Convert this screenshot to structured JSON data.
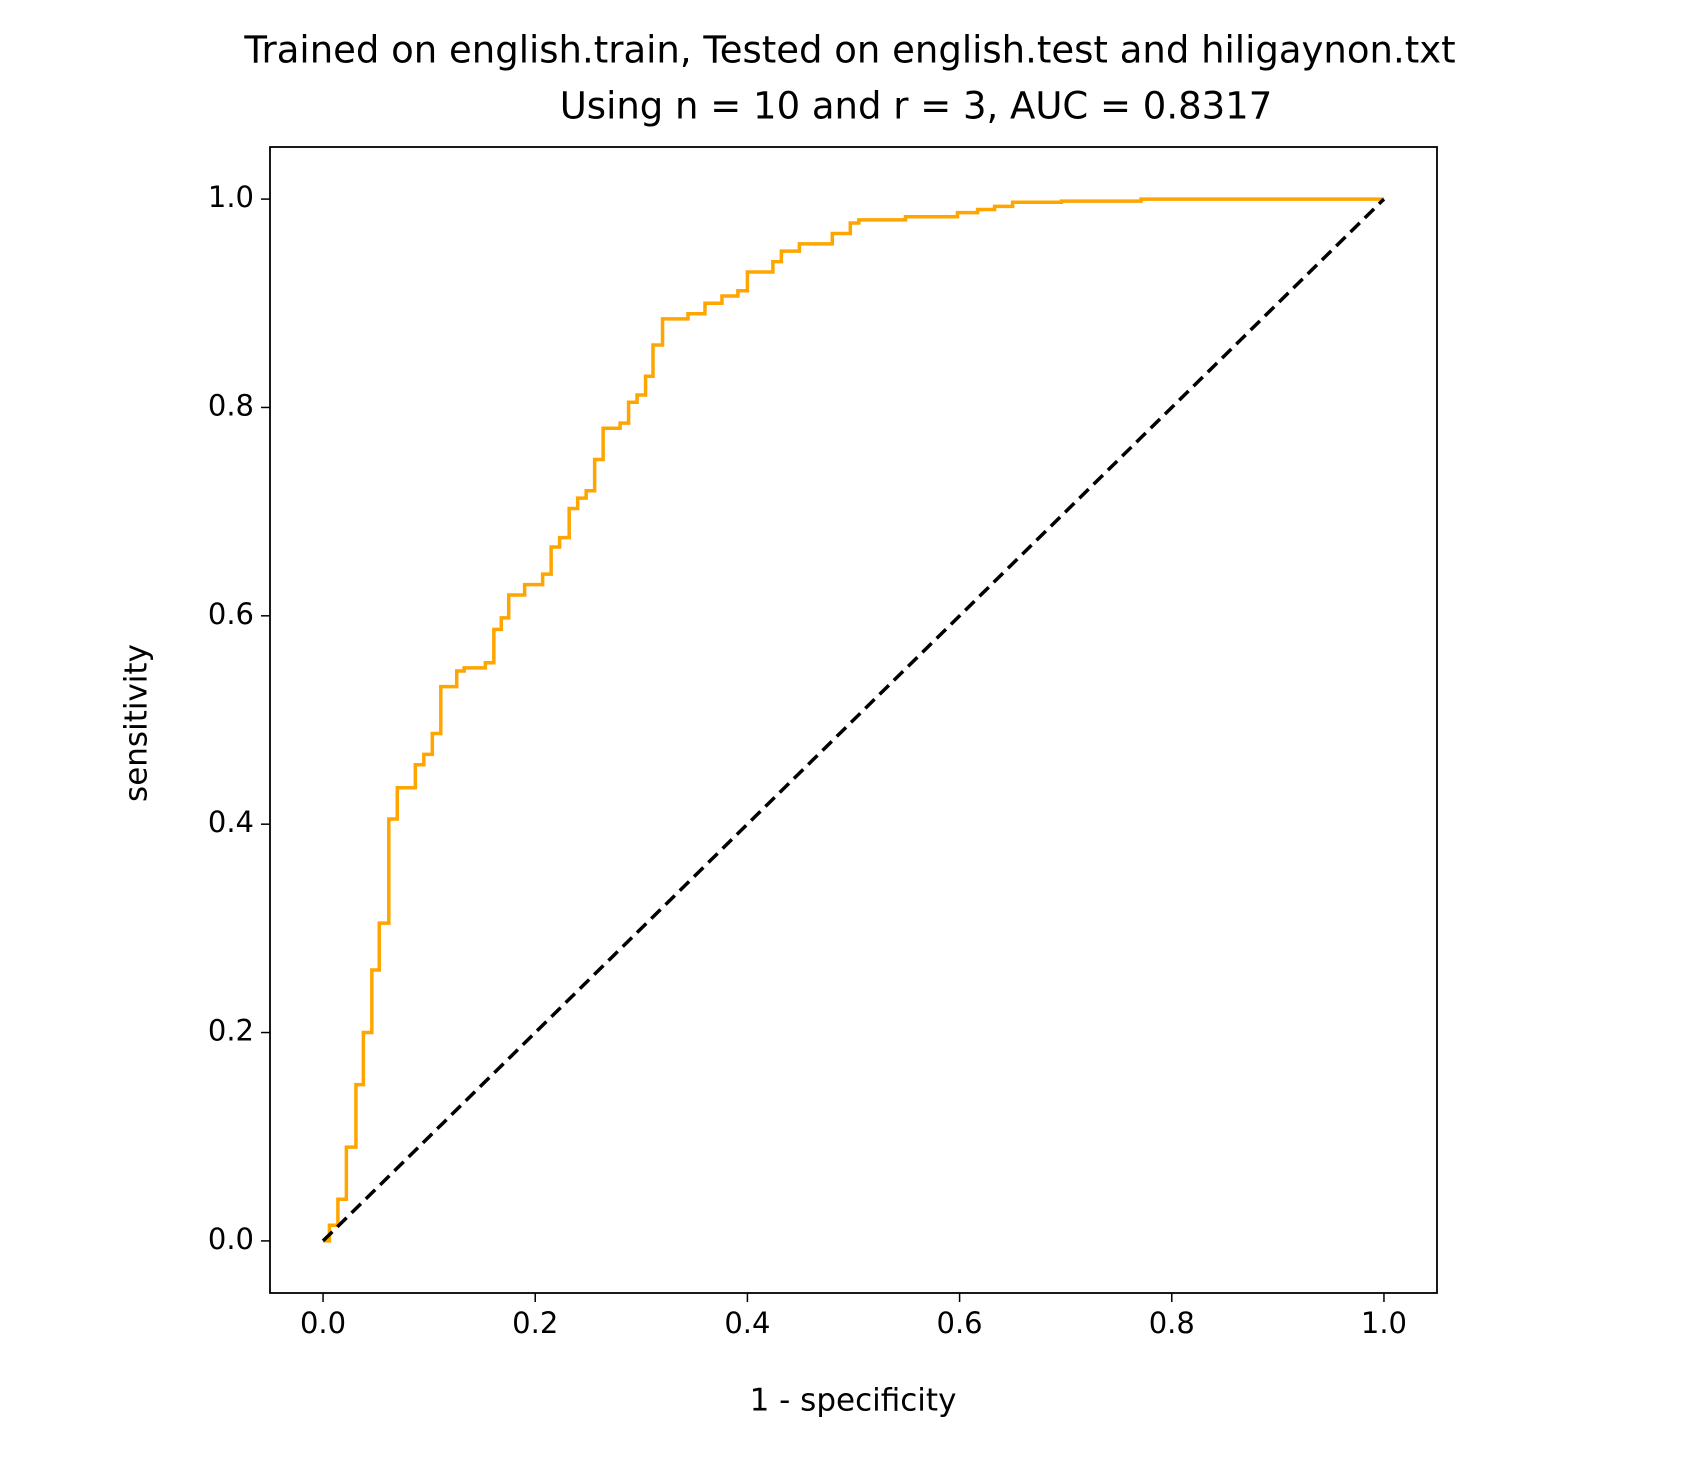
{
  "chart_data": {
    "type": "line",
    "title": "Trained on english.train, Tested on english.test and hiligaynon.txt",
    "subtitle": "Using n = 10 and r = 3, AUC = 0.8317",
    "xlabel": "1 - specificity",
    "ylabel": "sensitivity",
    "xlim": [
      -0.05,
      1.05
    ],
    "ylim": [
      -0.05,
      1.05
    ],
    "xticks": [
      {
        "value": 0,
        "label": "0.0"
      },
      0.2,
      0.4,
      0.6,
      0.8,
      {
        "value": 1,
        "label": "1.0"
      }
    ],
    "yticks": [
      {
        "value": 0,
        "label": "0.0"
      },
      0.2,
      0.4,
      0.6,
      0.8,
      {
        "value": 1,
        "label": "1.0"
      }
    ],
    "grid": false,
    "series": [
      {
        "color": "#ffa500",
        "drawstyle": "steps-post",
        "x": [
          0,
          0.006,
          0.014,
          0.022,
          0.031,
          0.038,
          0.046,
          0.053,
          0.062,
          0.07,
          0.087,
          0.095,
          0.103,
          0.111,
          0.126,
          0.133,
          0.153,
          0.161,
          0.168,
          0.175,
          0.19,
          0.207,
          0.215,
          0.223,
          0.232,
          0.24,
          0.248,
          0.256,
          0.264,
          0.28,
          0.288,
          0.296,
          0.304,
          0.311,
          0.32,
          0.344,
          0.36,
          0.376,
          0.391,
          0.4,
          0.424,
          0.432,
          0.449,
          0.48,
          0.497,
          0.505,
          0.549,
          0.598,
          0.617,
          0.633,
          0.65,
          0.696,
          0.771,
          1
        ],
        "values": [
          0,
          0.015,
          0.04,
          0.09,
          0.15,
          0.2,
          0.26,
          0.305,
          0.405,
          0.435,
          0.457,
          0.467,
          0.487,
          0.532,
          0.547,
          0.55,
          0.555,
          0.587,
          0.598,
          0.62,
          0.63,
          0.64,
          0.666,
          0.675,
          0.703,
          0.713,
          0.72,
          0.75,
          0.78,
          0.785,
          0.805,
          0.812,
          0.83,
          0.86,
          0.885,
          0.89,
          0.9,
          0.907,
          0.912,
          0.93,
          0.94,
          0.95,
          0.957,
          0.967,
          0.977,
          0.98,
          0.983,
          0.987,
          0.99,
          0.993,
          0.997,
          0.998,
          1,
          1
        ]
      },
      {
        "color": "#000000",
        "dashed": true,
        "x": [
          0,
          1
        ],
        "values": [
          0,
          1
        ]
      }
    ]
  }
}
